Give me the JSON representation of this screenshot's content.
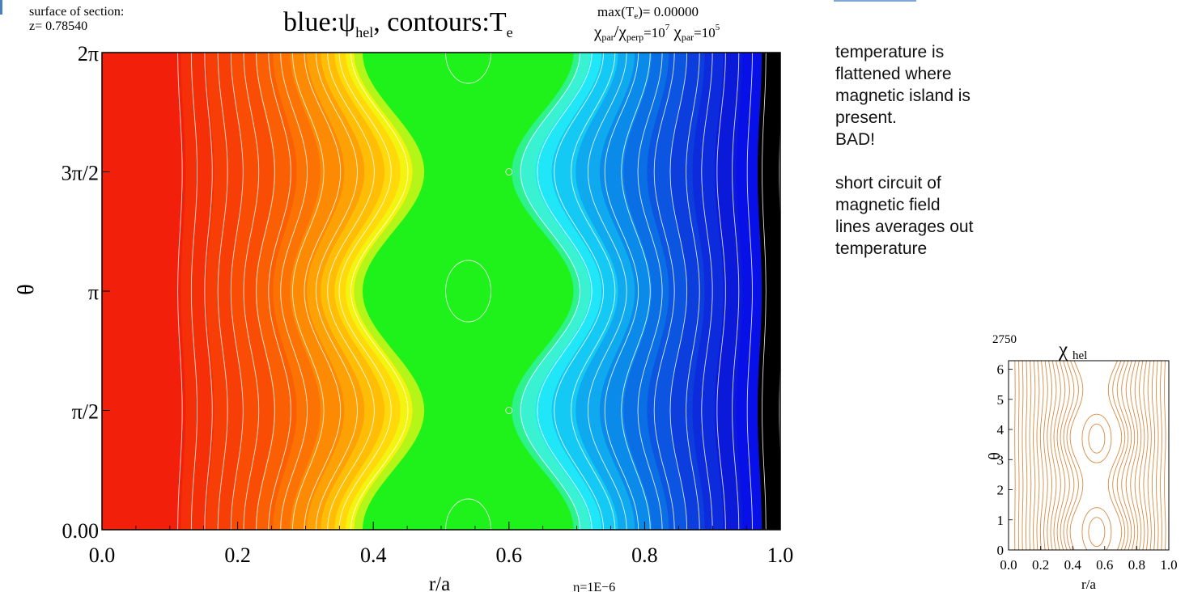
{
  "header": {
    "surface_label": "surface of section:",
    "z_label": "z=  0.78540",
    "title_main": "blue:ψ",
    "title_sub": "hel",
    "title_rest": ", contours:T",
    "title_sub2": "e",
    "max_label": "max(T",
    "max_sub": "e",
    "max_value": ")=  0.00000",
    "chi_a": "χ",
    "chi_a_sub": "par",
    "chi_slash": "/χ",
    "chi_b_sub": "perp",
    "chi_eq": "=10",
    "chi_exp": "7",
    "chi_c": " χ",
    "chi_c_sub": "par",
    "chi_eq2": "=10",
    "chi_exp2": "5"
  },
  "notes": {
    "line1": "temperature is",
    "line2": "flattened where",
    "line3": "magnetic island is",
    "line4": "present.",
    "line5": "BAD!",
    "line6": "short circuit of",
    "line7": "magnetic field",
    "line8": "lines averages out",
    "line9": "temperature"
  },
  "chart_data": [
    {
      "type": "heatmap",
      "xlabel": "r/a",
      "ylabel": "θ",
      "xlim": [
        0.0,
        1.0
      ],
      "ylim": [
        0,
        6.2832
      ],
      "x_ticks": [
        "0.0",
        "0.2",
        "0.4",
        "0.6",
        "0.8",
        "1.0"
      ],
      "y_ticks": [
        "0.00",
        "π/2",
        "π",
        "3π/2",
        "2π"
      ],
      "footnote": "η=1E−6",
      "color_bands": [
        {
          "r0": 0.0,
          "r1": 0.12,
          "color": "#f21f0a"
        },
        {
          "r0": 0.12,
          "r1": 0.16,
          "color": "#f52f08"
        },
        {
          "r0": 0.16,
          "r1": 0.2,
          "color": "#f73e06"
        },
        {
          "r0": 0.2,
          "r1": 0.24,
          "color": "#f94d05"
        },
        {
          "r0": 0.24,
          "r1": 0.27,
          "color": "#fb5f04"
        },
        {
          "r0": 0.27,
          "r1": 0.3,
          "color": "#fc7303"
        },
        {
          "r0": 0.3,
          "r1": 0.33,
          "color": "#fd8a03"
        },
        {
          "r0": 0.33,
          "r1": 0.355,
          "color": "#fea104"
        },
        {
          "r0": 0.355,
          "r1": 0.38,
          "color": "#ffbd06"
        },
        {
          "r0": 0.38,
          "r1": 0.4,
          "color": "#ffd90a"
        },
        {
          "r0": 0.4,
          "r1": 0.415,
          "color": "#f3f50f"
        },
        {
          "r0": 0.415,
          "r1": 0.43,
          "color": "#b5f518"
        },
        {
          "r0": 0.43,
          "r1": 0.65,
          "color": "#1ff21a"
        },
        {
          "r0": 0.65,
          "r1": 0.66,
          "color": "#2ef28a"
        },
        {
          "r0": 0.66,
          "r1": 0.68,
          "color": "#38f2d2"
        },
        {
          "r0": 0.68,
          "r1": 0.7,
          "color": "#1fe7f7"
        },
        {
          "r0": 0.7,
          "r1": 0.73,
          "color": "#14c9f3"
        },
        {
          "r0": 0.73,
          "r1": 0.76,
          "color": "#0ea9ee"
        },
        {
          "r0": 0.76,
          "r1": 0.79,
          "color": "#0a8be9"
        },
        {
          "r0": 0.79,
          "r1": 0.82,
          "color": "#0a6ee5"
        },
        {
          "r0": 0.82,
          "r1": 0.85,
          "color": "#0b55e1"
        },
        {
          "r0": 0.85,
          "r1": 0.88,
          "color": "#0c3ede"
        },
        {
          "r0": 0.88,
          "r1": 0.91,
          "color": "#0b2bdc"
        },
        {
          "r0": 0.91,
          "r1": 0.94,
          "color": "#0a1ad8"
        },
        {
          "r0": 0.94,
          "r1": 0.97,
          "color": "#0810e8"
        },
        {
          "r0": 0.97,
          "r1": 1.0,
          "color": "#000000"
        }
      ],
      "island": {
        "r_center": 0.54,
        "half_width": 0.115,
        "o_points": [
          0,
          3.1416,
          6.2832
        ],
        "x_points": [
          1.5708,
          4.7124
        ]
      },
      "contour_color": "#ffffff"
    },
    {
      "type": "line",
      "title": "χ",
      "title_sub": "hel",
      "xlabel": "r/a",
      "ylabel": "θ",
      "xlim": [
        0.0,
        1.0
      ],
      "ylim": [
        0,
        6.2832
      ],
      "x_ticks": [
        "0.0",
        "0.2",
        "0.4",
        "0.6",
        "0.8",
        "1.0"
      ],
      "y_ticks": [
        "0",
        "1",
        "2",
        "3",
        "4",
        "5",
        "6"
      ],
      "clipped_label": "2750",
      "line_color": "#d98a40",
      "island": {
        "r_center": 0.55,
        "half_width": 0.12,
        "o_points": [
          0.6,
          3.7
        ],
        "x_points": [
          2.2
        ]
      }
    }
  ]
}
